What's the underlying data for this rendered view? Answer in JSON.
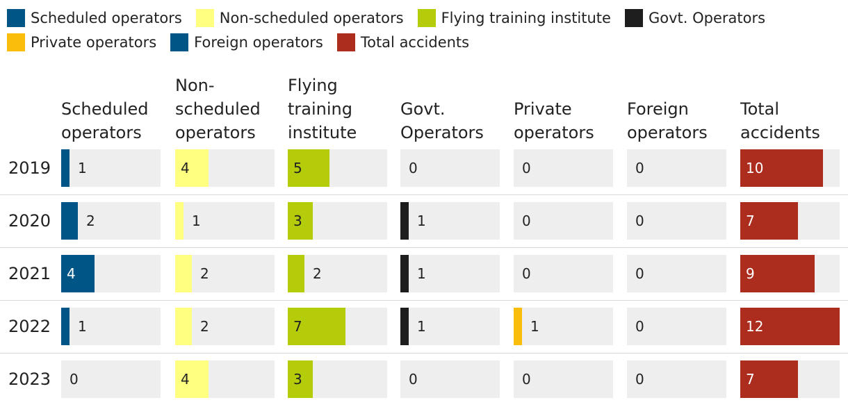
{
  "chart_data": {
    "type": "table",
    "categories": [
      "2019",
      "2020",
      "2021",
      "2022",
      "2023"
    ],
    "series": [
      {
        "name": "Scheduled operators",
        "header": "Scheduled operators",
        "color": "#005587",
        "values": [
          1,
          2,
          4,
          1,
          0
        ]
      },
      {
        "name": "Non-scheduled operators",
        "header": "Non-scheduled operators",
        "color": "#ffff80",
        "values": [
          4,
          1,
          2,
          2,
          4
        ]
      },
      {
        "name": "Flying training institute",
        "header": "Flying training institute",
        "color": "#b5cc0a",
        "values": [
          5,
          3,
          2,
          7,
          3
        ]
      },
      {
        "name": "Govt. Operators",
        "header": "Govt. Operators",
        "color": "#1e1e1e",
        "values": [
          0,
          1,
          1,
          1,
          0
        ]
      },
      {
        "name": "Private operators",
        "header": "Private operators",
        "color": "#fbbd0b",
        "values": [
          0,
          0,
          0,
          1,
          0
        ]
      },
      {
        "name": "Foreign operators",
        "header": "Foreign operators",
        "color": "#005587",
        "values": [
          0,
          0,
          0,
          0,
          0
        ]
      },
      {
        "name": "Total accidents",
        "header": "Total accidents",
        "color": "#ac2c1e",
        "values": [
          10,
          7,
          9,
          12,
          7
        ]
      }
    ],
    "scale_max": 12,
    "legend_position": "top"
  }
}
